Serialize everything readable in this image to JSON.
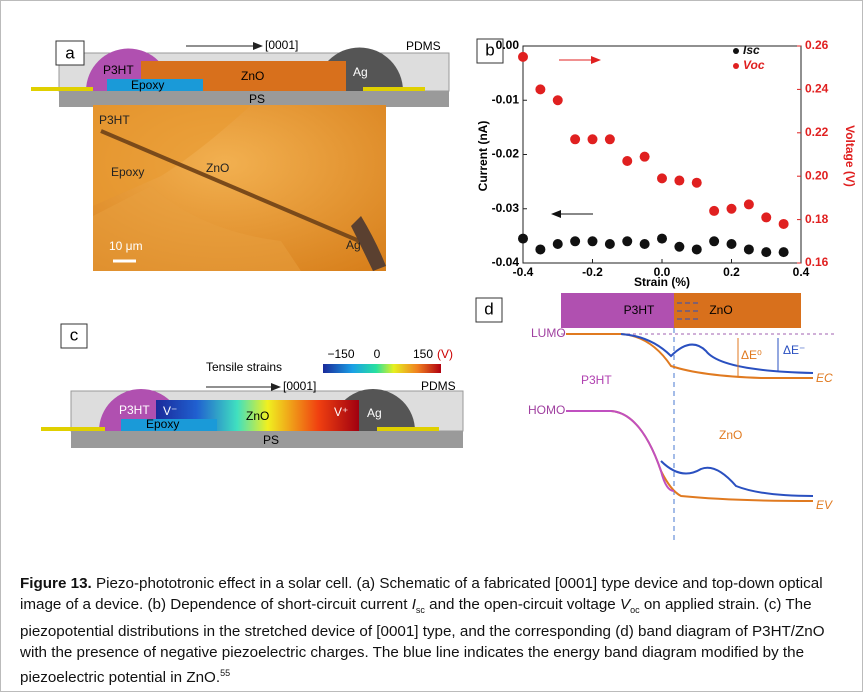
{
  "panel_a": {
    "label": "a",
    "schematic": {
      "direction": "[0001]",
      "pdms": "PDMS",
      "p3ht": "P3HT",
      "zno": "ZnO",
      "ag": "Ag",
      "epoxy": "Epoxy",
      "ps": "PS"
    },
    "photo": {
      "p3ht": "P3HT",
      "epoxy": "Epoxy",
      "zno": "ZnO",
      "ag": "Ag",
      "scale": "10 μm"
    }
  },
  "chart_data": {
    "type": "scatter",
    "label": "b",
    "xlabel": "Strain (%)",
    "ylabel": "Current (nA)",
    "y2label": "Voltage (V)",
    "xlim": [
      -0.4,
      0.4
    ],
    "xticks": [
      -0.4,
      -0.2,
      {
        "value": 0,
        "label": "0.0"
      },
      0.2,
      0.4
    ],
    "ylim": [
      -0.04,
      0.0
    ],
    "yticks": [
      {
        "value": 0,
        "label": "0.00"
      },
      -0.01,
      -0.02,
      -0.03,
      -0.04
    ],
    "y2lim": [
      0.16,
      0.26
    ],
    "y2ticks": [
      0.16,
      0.18,
      {
        "value": 0.2,
        "label": "0.20"
      },
      0.22,
      0.24,
      0.26
    ],
    "x": [
      -0.4,
      -0.35,
      -0.3,
      -0.25,
      -0.2,
      -0.15,
      -0.1,
      -0.05,
      0,
      0.05,
      0.1,
      0.15,
      0.2,
      0.25,
      0.3,
      0.35
    ],
    "series": [
      {
        "name": "Isc",
        "color": "#111111",
        "values": [
          -0.0355,
          -0.0375,
          -0.0365,
          -0.036,
          -0.036,
          -0.0365,
          -0.036,
          -0.0365,
          -0.0355,
          -0.037,
          -0.0375,
          -0.036,
          -0.0365,
          -0.0375,
          -0.038,
          -0.038
        ]
      },
      {
        "name": "Voc",
        "color": "#e02020",
        "axis": "y2",
        "values": [
          0.255,
          0.24,
          0.235,
          0.217,
          0.217,
          0.217,
          0.207,
          0.209,
          0.199,
          0.198,
          0.197,
          0.184,
          0.185,
          0.187,
          0.181,
          0.178
        ]
      }
    ]
  },
  "panel_c": {
    "label": "c",
    "colorbar": {
      "title": "Tensile strains",
      "ticks": [
        "−150",
        "0",
        "150"
      ],
      "unit": "(V)"
    },
    "schematic": {
      "direction": "[0001]",
      "pdms": "PDMS",
      "p3ht": "P3HT",
      "vminus": "V⁻",
      "zno": "ZnO",
      "vplus": "V⁺",
      "ag": "Ag",
      "epoxy": "Epoxy",
      "ps": "PS"
    }
  },
  "panel_d": {
    "label": "d",
    "bar_p3ht": "P3HT",
    "bar_zno": "ZnO",
    "lumo": "LUMO",
    "homo": "HOMO",
    "p3ht": "P3HT",
    "zno": "ZnO",
    "de0": "ΔE⁰",
    "deminus": "ΔE⁻",
    "ec": "EC",
    "ev": "EV"
  },
  "caption": {
    "figure": "Figure 13.",
    "text1": " Piezo-phototronic effect in a solar cell. (a) Schematic of a fabricated [0001] type device and top-down optical image of a device. (b) Dependence of short-circuit current ",
    "i": "I",
    "sc": "sc",
    "text2": " and the open-circuit voltage ",
    "v": "V",
    "oc": "oc",
    "text3": " on applied strain. (c) The piezopotential distributions in the stretched device of [0001] type, and the corresponding (d) band diagram of P3HT/ZnO with the presence of negative piezoelectric charges. The blue line indicates the energy band diagram modified by the piezoelectric potential in ZnO.",
    "ref": "55"
  }
}
